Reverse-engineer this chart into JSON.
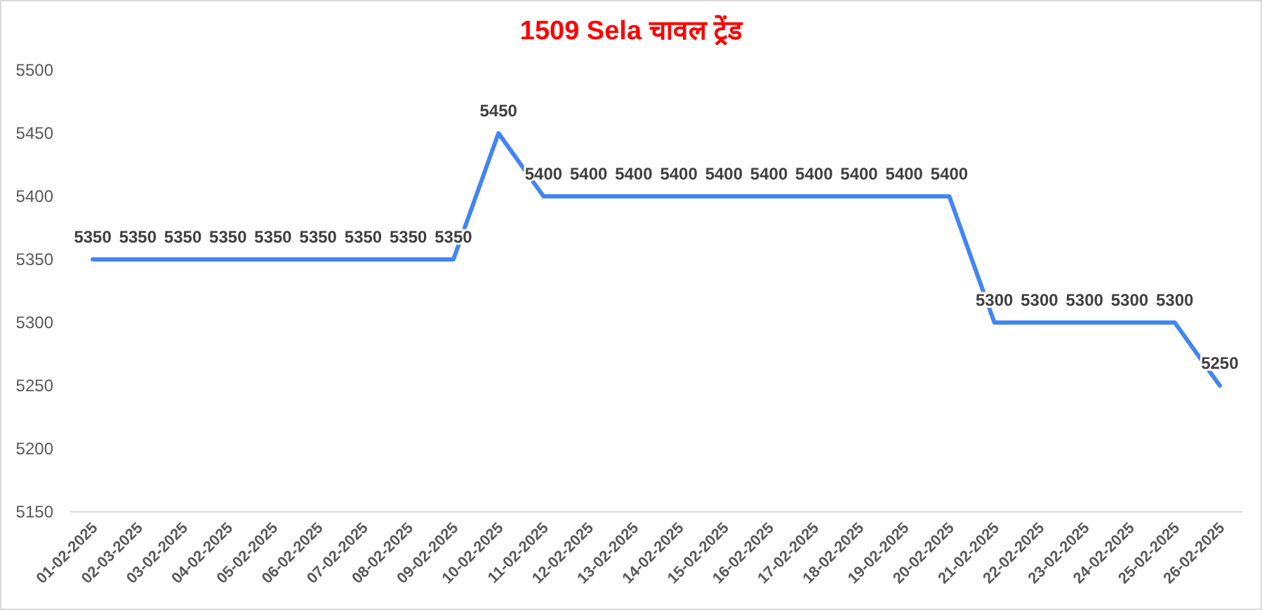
{
  "chart_data": {
    "type": "line",
    "title": "1509 Sela चावल ट्रेंड",
    "categories": [
      "01-02-2025",
      "02-03-2025",
      "03-02-2025",
      "04-02-2025",
      "05-02-2025",
      "06-02-2025",
      "07-02-2025",
      "08-02-2025",
      "09-02-2025",
      "10-02-2025",
      "11-02-2025",
      "12-02-2025",
      "13-02-2025",
      "14-02-2025",
      "15-02-2025",
      "16-02-2025",
      "17-02-2025",
      "18-02-2025",
      "19-02-2025",
      "20-02-2025",
      "21-02-2025",
      "22-02-2025",
      "23-02-2025",
      "24-02-2025",
      "25-02-2025",
      "26-02-2025"
    ],
    "series": [
      {
        "color": "#4285f4",
        "values": [
          5350,
          5350,
          5350,
          5350,
          5350,
          5350,
          5350,
          5350,
          5350,
          5450,
          5400,
          5400,
          5400,
          5400,
          5400,
          5400,
          5400,
          5400,
          5400,
          5400,
          5300,
          5300,
          5300,
          5300,
          5300,
          5250
        ]
      }
    ],
    "ylim": [
      5150,
      5500
    ],
    "yticks": [
      5150,
      5200,
      5250,
      5300,
      5350,
      5400,
      5450,
      5500
    ],
    "data_labels": true,
    "grid": false,
    "marker": "none",
    "line_style": "solid"
  }
}
